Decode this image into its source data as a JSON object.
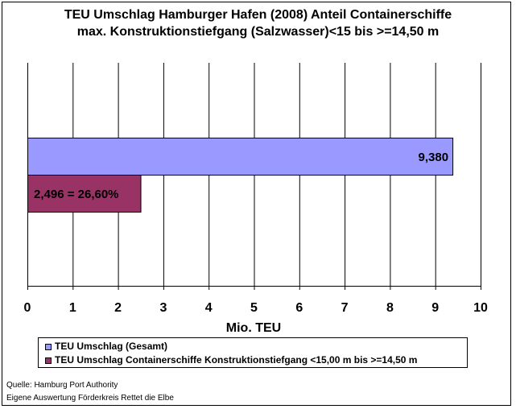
{
  "chart_data": {
    "type": "bar",
    "orientation": "horizontal",
    "title_line1": "TEU Umschlag Hamburger Hafen (2008)  Anteil Containerschiffe",
    "title_line2": "max. Konstruktionstiefgang (Salzwasser)<15 bis >=14,50 m",
    "xlabel": "Mio. TEU",
    "xlim": [
      0,
      10
    ],
    "xticks": [
      "0",
      "1",
      "2",
      "3",
      "4",
      "5",
      "6",
      "7",
      "8",
      "9",
      "10"
    ],
    "grid": true,
    "series": [
      {
        "name": "TEU Umschlag (Gesamt)",
        "value": 9.38,
        "label": "9,380",
        "color": "#9999ff"
      },
      {
        "name": "TEU Umschlag Containerschiffe Konstruktionstiefgang <15,00 m bis >=14,50 m",
        "value": 2.496,
        "label": "2,496  = 26,60%",
        "color": "#993366"
      }
    ],
    "legend_position": "bottom"
  },
  "footer": {
    "source_line1": "Quelle: Hamburg Port Authority",
    "source_line2": "Eigene Auswertung Förderkreis Rettet die Elbe"
  }
}
